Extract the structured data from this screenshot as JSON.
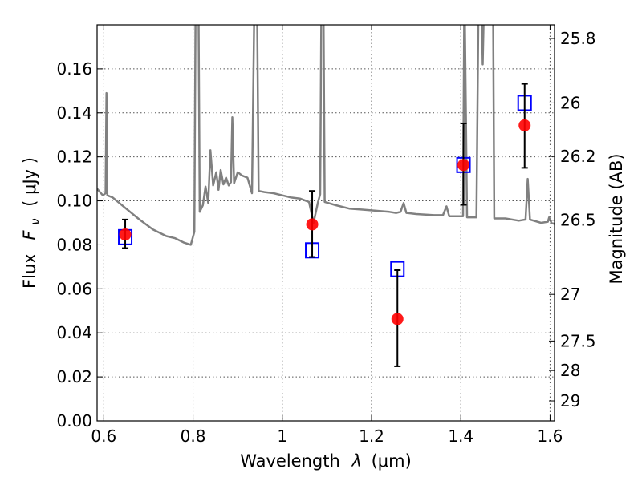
{
  "chart_data": {
    "type": "scatter",
    "title": "",
    "xlabel_text": "Wavelength",
    "xlabel_symbol": "λ",
    "xlabel_unit": "(μm)",
    "ylabel_text": "Flux",
    "ylabel_symbol": "F",
    "ylabel_symbol_sub": "ν",
    "ylabel_unit": "( μJy )",
    "ylabel_right": "Magnitude (AB)",
    "xlim": [
      0.585,
      1.61
    ],
    "ylim": [
      0.0,
      0.18
    ],
    "grid": true,
    "x_ticks": [
      {
        "value": 0.6,
        "label": "0.6"
      },
      {
        "value": 0.8,
        "label": "0.8"
      },
      {
        "value": 1.0,
        "label": "1"
      },
      {
        "value": 1.2,
        "label": "1.2"
      },
      {
        "value": 1.4,
        "label": "1.4"
      },
      {
        "value": 1.6,
        "label": "1.6"
      }
    ],
    "y_ticks": [
      {
        "value": 0.0,
        "label": "0.00"
      },
      {
        "value": 0.02,
        "label": "0.02"
      },
      {
        "value": 0.04,
        "label": "0.04"
      },
      {
        "value": 0.06,
        "label": "0.06"
      },
      {
        "value": 0.08,
        "label": "0.08"
      },
      {
        "value": 0.1,
        "label": "0.10"
      },
      {
        "value": 0.12,
        "label": "0.12"
      },
      {
        "value": 0.14,
        "label": "0.14"
      },
      {
        "value": 0.16,
        "label": "0.16"
      }
    ],
    "right_ticks": [
      {
        "flux": 0.1738,
        "label": "25.8"
      },
      {
        "flux": 0.1445,
        "label": "26"
      },
      {
        "flux": 0.1202,
        "label": "26.2"
      },
      {
        "flux": 0.0912,
        "label": "26.5"
      },
      {
        "flux": 0.0575,
        "label": "27"
      },
      {
        "flux": 0.0363,
        "label": "27.5"
      },
      {
        "flux": 0.0229,
        "label": "28"
      },
      {
        "flux": 0.0091,
        "label": "29"
      }
    ],
    "series": [
      {
        "kind": "observed",
        "marker": "filled-circle",
        "color": "#ff0000",
        "points": [
          {
            "x": 0.648,
            "y": 0.0847,
            "err_low": 0.0785,
            "err_high": 0.0915
          },
          {
            "x": 1.067,
            "y": 0.0893,
            "err_low": 0.0745,
            "err_high": 0.1045
          },
          {
            "x": 1.258,
            "y": 0.0463,
            "err_low": 0.0248,
            "err_high": 0.0685
          },
          {
            "x": 1.406,
            "y": 0.1163,
            "err_low": 0.0982,
            "err_high": 0.1352
          },
          {
            "x": 1.543,
            "y": 0.1343,
            "err_low": 0.115,
            "err_high": 0.1532
          }
        ]
      },
      {
        "kind": "model-bandpass",
        "marker": "open-square",
        "color": "#0000ff",
        "points": [
          {
            "x": 0.648,
            "y": 0.0835
          },
          {
            "x": 1.067,
            "y": 0.0775
          },
          {
            "x": 1.258,
            "y": 0.069
          },
          {
            "x": 1.406,
            "y": 0.1163
          },
          {
            "x": 1.543,
            "y": 0.1445
          }
        ]
      },
      {
        "kind": "model-spectrum",
        "marker": "line",
        "color": "#808080",
        "line": [
          [
            0.585,
            0.1055
          ],
          [
            0.598,
            0.1025
          ],
          [
            0.604,
            0.1035
          ],
          [
            0.606,
            0.149
          ],
          [
            0.608,
            0.1025
          ],
          [
            0.62,
            0.1015
          ],
          [
            0.65,
            0.0965
          ],
          [
            0.68,
            0.0915
          ],
          [
            0.71,
            0.087
          ],
          [
            0.74,
            0.084
          ],
          [
            0.76,
            0.083
          ],
          [
            0.78,
            0.081
          ],
          [
            0.795,
            0.08
          ],
          [
            0.803,
            0.086
          ],
          [
            0.806,
            0.2
          ],
          [
            0.812,
            0.2
          ],
          [
            0.815,
            0.095
          ],
          [
            0.822,
            0.098
          ],
          [
            0.828,
            0.1065
          ],
          [
            0.834,
            0.099
          ],
          [
            0.839,
            0.123
          ],
          [
            0.845,
            0.107
          ],
          [
            0.852,
            0.113
          ],
          [
            0.857,
            0.105
          ],
          [
            0.862,
            0.114
          ],
          [
            0.868,
            0.1075
          ],
          [
            0.874,
            0.1105
          ],
          [
            0.88,
            0.107
          ],
          [
            0.885,
            0.1085
          ],
          [
            0.888,
            0.138
          ],
          [
            0.892,
            0.108
          ],
          [
            0.9,
            0.113
          ],
          [
            0.91,
            0.1115
          ],
          [
            0.922,
            0.1105
          ],
          [
            0.932,
            0.1035
          ],
          [
            0.938,
            0.2
          ],
          [
            0.943,
            0.2
          ],
          [
            0.947,
            0.1045
          ],
          [
            0.96,
            0.104
          ],
          [
            0.98,
            0.1035
          ],
          [
            1.0,
            0.1025
          ],
          [
            1.02,
            0.1015
          ],
          [
            1.04,
            0.101
          ],
          [
            1.06,
            0.0995
          ],
          [
            1.07,
            0.09
          ],
          [
            1.08,
            0.0995
          ],
          [
            1.085,
            0.103
          ],
          [
            1.088,
            0.2
          ],
          [
            1.092,
            0.2
          ],
          [
            1.095,
            0.0995
          ],
          [
            1.12,
            0.098
          ],
          [
            1.15,
            0.0965
          ],
          [
            1.18,
            0.096
          ],
          [
            1.21,
            0.0955
          ],
          [
            1.24,
            0.095
          ],
          [
            1.255,
            0.0945
          ],
          [
            1.265,
            0.095
          ],
          [
            1.272,
            0.099
          ],
          [
            1.278,
            0.0945
          ],
          [
            1.3,
            0.094
          ],
          [
            1.34,
            0.0935
          ],
          [
            1.36,
            0.0935
          ],
          [
            1.368,
            0.0975
          ],
          [
            1.374,
            0.093
          ],
          [
            1.395,
            0.093
          ],
          [
            1.405,
            0.093
          ],
          [
            1.408,
            0.2
          ],
          [
            1.414,
            0.0925
          ],
          [
            1.435,
            0.0925
          ],
          [
            1.44,
            0.2
          ],
          [
            1.446,
            0.2
          ],
          [
            1.449,
            0.162
          ],
          [
            1.453,
            0.2
          ],
          [
            1.472,
            0.2
          ],
          [
            1.475,
            0.092
          ],
          [
            1.5,
            0.092
          ],
          [
            1.53,
            0.091
          ],
          [
            1.545,
            0.0915
          ],
          [
            1.55,
            0.11
          ],
          [
            1.555,
            0.0915
          ],
          [
            1.58,
            0.09
          ],
          [
            1.595,
            0.0905
          ],
          [
            1.598,
            0.0925
          ],
          [
            1.603,
            0.09
          ],
          [
            1.61,
            0.0895
          ]
        ]
      }
    ]
  }
}
